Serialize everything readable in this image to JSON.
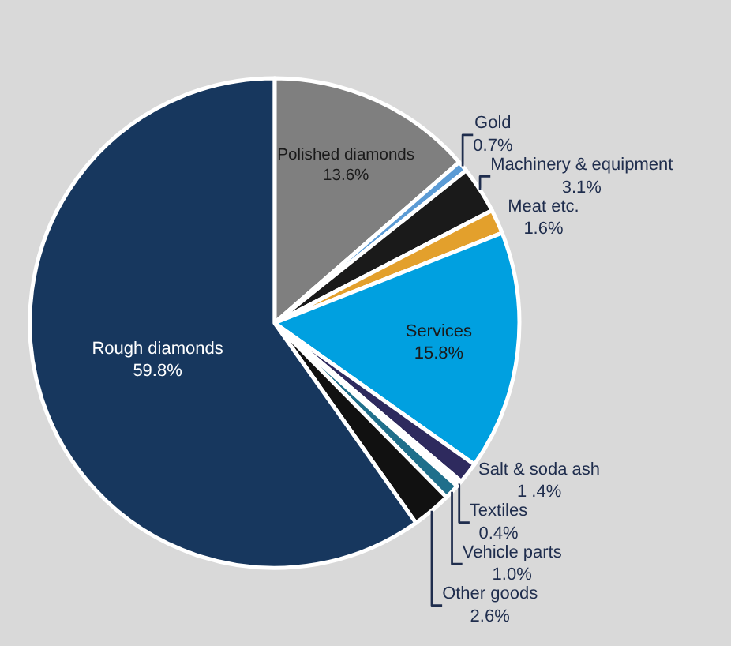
{
  "chart_data": {
    "type": "pie",
    "categories": [
      "Polished diamonds",
      "Gold",
      "Machinery & equipment",
      "Meat etc.",
      "Services",
      "Salt & soda ash",
      "Textiles",
      "Vehicle parts",
      "Other goods",
      "Rough diamonds"
    ],
    "values": [
      13.6,
      0.7,
      3.1,
      1.6,
      15.8,
      1.4,
      0.4,
      1.0,
      2.6,
      59.8
    ],
    "value_labels": [
      "13.6%",
      "0.7%",
      "3.1%",
      "1.6%",
      "15.8%",
      "1 .4%",
      "0.4%",
      "1.0%",
      "2.6%",
      "59.8%"
    ],
    "colors": [
      "#7f7f7f",
      "#5b9bd5",
      "#1a1a1a",
      "#e3a02c",
      "#00a0e0",
      "#2e2a5e",
      "#ffffff",
      "#1f6f8b",
      "#111111",
      "#17375e"
    ],
    "legend": false
  }
}
